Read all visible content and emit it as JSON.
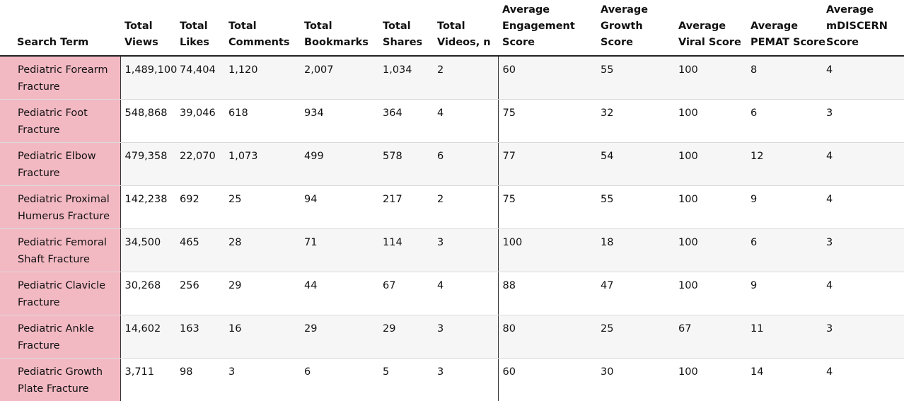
{
  "table": {
    "headers": [
      [
        "Search Term"
      ],
      [
        "Total",
        "Views"
      ],
      [
        "Total",
        "Likes"
      ],
      [
        "Total",
        "Comments"
      ],
      [
        "Total",
        "Bookmarks"
      ],
      [
        "Total",
        "Shares"
      ],
      [
        "Total",
        "Videos, n"
      ],
      [
        "Average",
        "Engagement",
        "Score"
      ],
      [
        "Average",
        "Growth",
        "Score"
      ],
      [
        "Average",
        "Viral Score"
      ],
      [
        "Average",
        "PEMAT Score"
      ],
      [
        "Average",
        "mDISCERN",
        "Score"
      ]
    ],
    "rows": [
      {
        "term": [
          "Pediatric Forearm",
          "Fracture"
        ],
        "cells": [
          "1,489,100",
          "74,404",
          "1,120",
          "2,007",
          "1,034",
          "2",
          "60",
          "55",
          "100",
          "8",
          "4"
        ]
      },
      {
        "term": [
          "Pediatric Foot",
          "Fracture"
        ],
        "cells": [
          "548,868",
          "39,046",
          "618",
          "934",
          "364",
          "4",
          "75",
          "32",
          "100",
          "6",
          "3"
        ]
      },
      {
        "term": [
          "Pediatric Elbow",
          "Fracture"
        ],
        "cells": [
          "479,358",
          "22,070",
          "1,073",
          "499",
          "578",
          "6",
          "77",
          "54",
          "100",
          "12",
          "4"
        ]
      },
      {
        "term": [
          "Pediatric Proximal",
          "Humerus Fracture"
        ],
        "cells": [
          "142,238",
          "692",
          "25",
          "94",
          "217",
          "2",
          "75",
          "55",
          "100",
          "9",
          "4"
        ]
      },
      {
        "term": [
          "Pediatric Femoral",
          "Shaft Fracture"
        ],
        "cells": [
          "34,500",
          "465",
          "28",
          "71",
          "114",
          "3",
          "100",
          "18",
          "100",
          "6",
          "3"
        ]
      },
      {
        "term": [
          "Pediatric Clavicle",
          "Fracture"
        ],
        "cells": [
          "30,268",
          "256",
          "29",
          "44",
          "67",
          "4",
          "88",
          "47",
          "100",
          "9",
          "4"
        ]
      },
      {
        "term": [
          "Pediatric Ankle",
          "Fracture"
        ],
        "cells": [
          "14,602",
          "163",
          "16",
          "29",
          "29",
          "3",
          "80",
          "25",
          "67",
          "11",
          "3"
        ]
      },
      {
        "term": [
          "Pediatric Growth",
          "Plate Fracture"
        ],
        "cells": [
          "3,711",
          "98",
          "3",
          "6",
          "5",
          "3",
          "60",
          "30",
          "100",
          "14",
          "4"
        ]
      }
    ]
  },
  "colors": {
    "search_term_bg": "#f3b9c3",
    "alt_row_bg": "#f6f6f6"
  }
}
